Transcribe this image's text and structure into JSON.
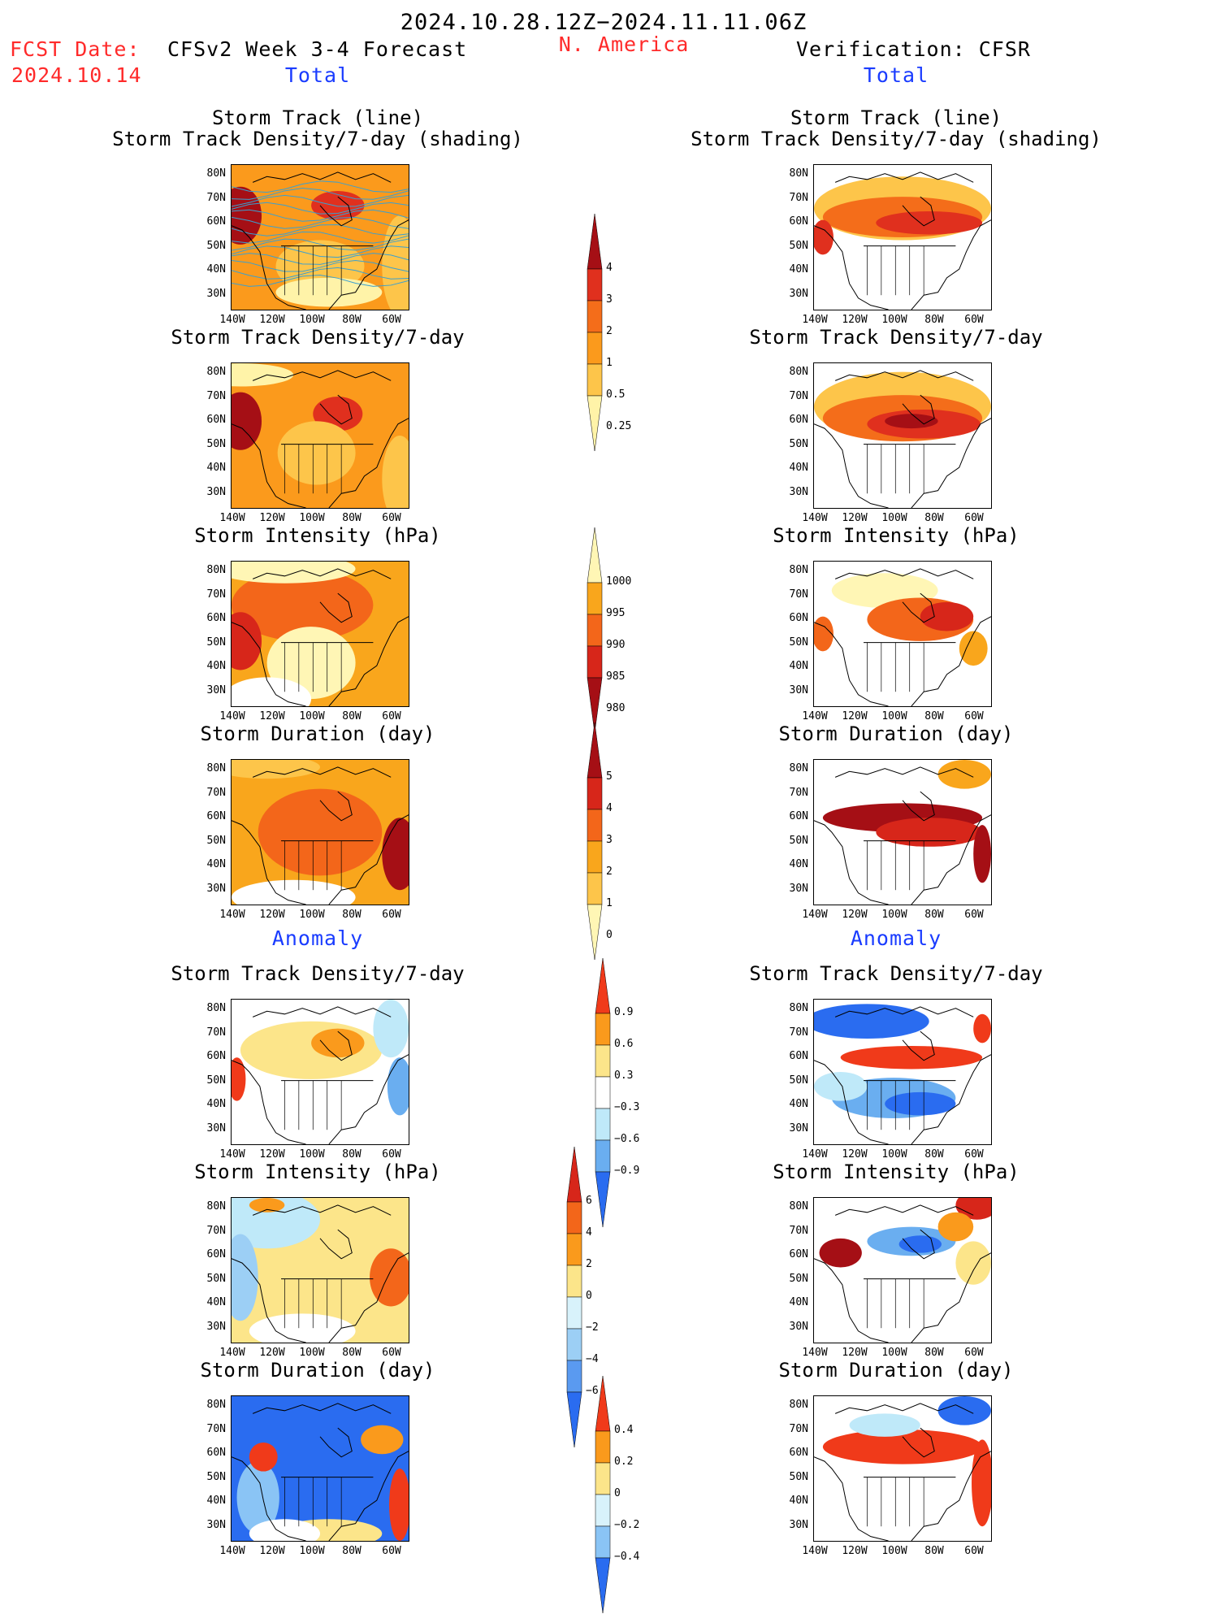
{
  "header": {
    "date_range": "2024.10.28.12Z−2024.11.11.06Z",
    "fcst_label": "FCST Date:",
    "fcst_date": "2024.10.14",
    "model": "CFSv2 Week 3-4 Forecast",
    "region": "N. America",
    "verification": "Verification: CFSR",
    "total_left": "Total",
    "total_right": "Total",
    "anomaly_left": "Anomaly",
    "anomaly_right": "Anomaly"
  },
  "axes": {
    "lat_labels": [
      "80N",
      "70N",
      "60N",
      "50N",
      "40N",
      "30N"
    ],
    "lon_labels": [
      "140W",
      "120W",
      "100W",
      "80W",
      "60W"
    ]
  },
  "panels": {
    "r1_title_a": "Storm Track (line)",
    "r1_title_b": "Storm Track Density/7-day (shading)",
    "density": "Storm Track Density/7-day",
    "intensity": "Storm Intensity (hPa)",
    "duration": "Storm Duration (day)"
  },
  "colorbars": {
    "density_total": {
      "labels": [
        "4",
        "3",
        "2",
        "1",
        "0.5",
        "0.25"
      ],
      "colors": [
        "#a50f15",
        "#e0301e",
        "#f46d1a",
        "#fb9a1c",
        "#fdc54a",
        "#fff3a8"
      ]
    },
    "intensity_total": {
      "labels": [
        "1000",
        "995",
        "990",
        "985",
        "980"
      ],
      "colors": [
        "#fff6b5",
        "#f9a61c",
        "#f3661a",
        "#d7261a",
        "#a50f15"
      ]
    },
    "duration_total": {
      "labels": [
        "5",
        "4",
        "3",
        "2",
        "1",
        "0"
      ],
      "colors": [
        "#a50f15",
        "#d7261a",
        "#f3661a",
        "#f9a61c",
        "#fdc54a",
        "#fff6b5"
      ]
    },
    "density_anom": {
      "labels": [
        "0.9",
        "0.6",
        "0.3",
        "−0.3",
        "−0.6",
        "−0.9"
      ],
      "colors": [
        "#f03a1a",
        "#fa9a1c",
        "#fce58a",
        "#ffffff",
        "#bfe9f9",
        "#6aaef0",
        "#2a6cf0"
      ]
    },
    "intensity_anom": {
      "labels": [
        "6",
        "4",
        "2",
        "0",
        "−2",
        "−4",
        "−6"
      ],
      "colors": [
        "#d7261a",
        "#f3661a",
        "#fa9a1c",
        "#fce58a",
        "#d8f2fb",
        "#9ccff5",
        "#5a9af0",
        "#2a6cf0"
      ]
    },
    "duration_anom": {
      "labels": [
        "0.4",
        "0.2",
        "0",
        "−0.2",
        "−0.4"
      ],
      "colors": [
        "#f03a1a",
        "#fa9a1c",
        "#fce58a",
        "#d8f2fb",
        "#8ac4f5",
        "#2a6cf0"
      ]
    }
  },
  "map_fields": {
    "fc_st": {
      "base": "#fb9a1c",
      "blobs": [
        [
          "#a50f15",
          0.05,
          0.35,
          0.12,
          0.2
        ],
        [
          "#e0301e",
          0.6,
          0.28,
          0.15,
          0.1
        ],
        [
          "#fdc54a",
          0.5,
          0.7,
          0.25,
          0.18
        ],
        [
          "#fff3a8",
          0.55,
          0.88,
          0.3,
          0.1
        ],
        [
          "#fdc54a",
          0.95,
          0.7,
          0.1,
          0.35
        ]
      ],
      "tracks": true
    },
    "fc_den": {
      "base": "#fb9a1c",
      "blobs": [
        [
          "#a50f15",
          0.05,
          0.4,
          0.12,
          0.2
        ],
        [
          "#e0301e",
          0.6,
          0.35,
          0.14,
          0.12
        ],
        [
          "#fdc54a",
          0.48,
          0.62,
          0.22,
          0.22
        ],
        [
          "#fff3a8",
          0.05,
          0.08,
          0.3,
          0.08
        ],
        [
          "#fdc54a",
          0.95,
          0.8,
          0.1,
          0.3
        ]
      ]
    },
    "fc_int": {
      "base": "#f9a61c",
      "blobs": [
        [
          "#f3661a",
          0.4,
          0.3,
          0.4,
          0.25
        ],
        [
          "#d7261a",
          0.05,
          0.55,
          0.12,
          0.2
        ],
        [
          "#fff6b5",
          0.45,
          0.7,
          0.25,
          0.25
        ],
        [
          "#fff6b5",
          0.3,
          0.05,
          0.4,
          0.1
        ],
        [
          "#ffffff",
          0.2,
          0.95,
          0.25,
          0.15
        ]
      ]
    },
    "fc_dur": {
      "base": "#f9a61c",
      "blobs": [
        [
          "#f3661a",
          0.5,
          0.5,
          0.35,
          0.3
        ],
        [
          "#a50f15",
          0.95,
          0.65,
          0.1,
          0.25
        ],
        [
          "#ffffff",
          0.35,
          0.95,
          0.35,
          0.12
        ],
        [
          "#fdc54a",
          0.2,
          0.05,
          0.3,
          0.08
        ]
      ]
    },
    "an_den": {
      "base": "#ffffff",
      "blobs": [
        [
          "#fce58a",
          0.45,
          0.35,
          0.4,
          0.2
        ],
        [
          "#fa9a1c",
          0.6,
          0.3,
          0.15,
          0.1
        ],
        [
          "#f03a1a",
          0.03,
          0.55,
          0.05,
          0.15
        ],
        [
          "#bfe9f9",
          0.9,
          0.2,
          0.1,
          0.2
        ],
        [
          "#6aaef0",
          0.95,
          0.6,
          0.07,
          0.2
        ]
      ]
    },
    "an_int": {
      "base": "#fce58a",
      "blobs": [
        [
          "#bfe9f9",
          0.2,
          0.15,
          0.3,
          0.2
        ],
        [
          "#9ccff5",
          0.05,
          0.55,
          0.1,
          0.3
        ],
        [
          "#f3661a",
          0.9,
          0.55,
          0.12,
          0.2
        ],
        [
          "#ffffff",
          0.4,
          0.92,
          0.3,
          0.12
        ],
        [
          "#fa9a1c",
          0.2,
          0.05,
          0.1,
          0.05
        ]
      ]
    },
    "an_dur": {
      "base": "#2a6cf0",
      "blobs": [
        [
          "#8ac4f5",
          0.15,
          0.7,
          0.12,
          0.25
        ],
        [
          "#f03a1a",
          0.18,
          0.42,
          0.08,
          0.1
        ],
        [
          "#fa9a1c",
          0.85,
          0.3,
          0.12,
          0.1
        ],
        [
          "#f03a1a",
          0.95,
          0.75,
          0.06,
          0.25
        ],
        [
          "#fce58a",
          0.55,
          0.95,
          0.3,
          0.1
        ],
        [
          "#ffffff",
          0.3,
          0.95,
          0.2,
          0.1
        ]
      ]
    },
    "vr_st": {
      "base": "#ffffff",
      "blobs": [
        [
          "#fdc54a",
          0.5,
          0.3,
          0.5,
          0.22
        ],
        [
          "#f46d1a",
          0.5,
          0.36,
          0.45,
          0.14
        ],
        [
          "#e0301e",
          0.65,
          0.4,
          0.3,
          0.08
        ],
        [
          "#e0301e",
          0.05,
          0.5,
          0.06,
          0.12
        ]
      ],
      "tracks": false
    },
    "vr_den": {
      "base": "#ffffff",
      "blobs": [
        [
          "#fdc54a",
          0.5,
          0.3,
          0.5,
          0.24
        ],
        [
          "#f46d1a",
          0.5,
          0.38,
          0.45,
          0.16
        ],
        [
          "#e0301e",
          0.62,
          0.42,
          0.32,
          0.1
        ],
        [
          "#a50f15",
          0.55,
          0.4,
          0.15,
          0.05
        ]
      ]
    },
    "vr_int": {
      "base": "#ffffff",
      "blobs": [
        [
          "#fff6b5",
          0.4,
          0.2,
          0.3,
          0.12
        ],
        [
          "#f3661a",
          0.6,
          0.4,
          0.3,
          0.15
        ],
        [
          "#d7261a",
          0.75,
          0.38,
          0.15,
          0.1
        ],
        [
          "#f9a61c",
          0.9,
          0.6,
          0.08,
          0.12
        ],
        [
          "#f3661a",
          0.05,
          0.5,
          0.06,
          0.12
        ]
      ]
    },
    "vr_dur": {
      "base": "#ffffff",
      "blobs": [
        [
          "#a50f15",
          0.5,
          0.4,
          0.45,
          0.1
        ],
        [
          "#d7261a",
          0.65,
          0.5,
          0.3,
          0.1
        ],
        [
          "#f9a61c",
          0.85,
          0.1,
          0.15,
          0.1
        ],
        [
          "#a50f15",
          0.95,
          0.65,
          0.05,
          0.2
        ]
      ]
    },
    "va_den": {
      "base": "#ffffff",
      "blobs": [
        [
          "#2a6cf0",
          0.3,
          0.15,
          0.35,
          0.12
        ],
        [
          "#f03a1a",
          0.55,
          0.4,
          0.4,
          0.08
        ],
        [
          "#6aaef0",
          0.45,
          0.68,
          0.35,
          0.14
        ],
        [
          "#2a6cf0",
          0.6,
          0.72,
          0.2,
          0.08
        ],
        [
          "#bfe9f9",
          0.15,
          0.6,
          0.15,
          0.1
        ],
        [
          "#f03a1a",
          0.95,
          0.2,
          0.05,
          0.1
        ]
      ]
    },
    "va_int": {
      "base": "#ffffff",
      "blobs": [
        [
          "#a50f15",
          0.15,
          0.38,
          0.12,
          0.1
        ],
        [
          "#6aaef0",
          0.55,
          0.3,
          0.25,
          0.1
        ],
        [
          "#2a6cf0",
          0.6,
          0.32,
          0.12,
          0.06
        ],
        [
          "#fce58a",
          0.9,
          0.45,
          0.1,
          0.15
        ],
        [
          "#d7261a",
          0.92,
          0.05,
          0.12,
          0.1
        ],
        [
          "#fa9a1c",
          0.8,
          0.2,
          0.1,
          0.1
        ]
      ]
    },
    "va_dur": {
      "base": "#ffffff",
      "blobs": [
        [
          "#f03a1a",
          0.5,
          0.35,
          0.45,
          0.12
        ],
        [
          "#f03a1a",
          0.95,
          0.6,
          0.06,
          0.3
        ],
        [
          "#2a6cf0",
          0.85,
          0.1,
          0.15,
          0.1
        ],
        [
          "#bfe9f9",
          0.4,
          0.2,
          0.2,
          0.08
        ]
      ]
    }
  }
}
